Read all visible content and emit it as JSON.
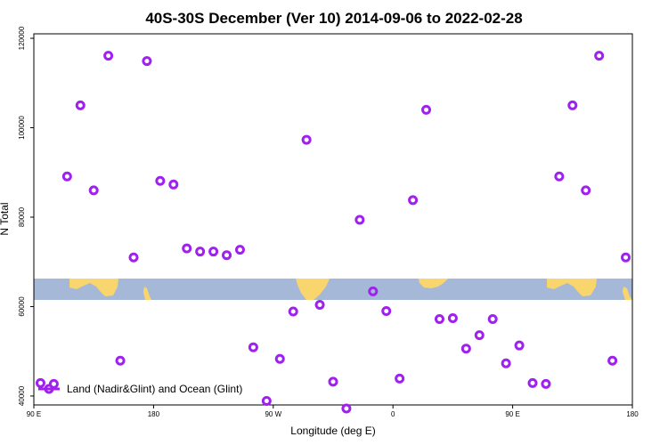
{
  "chart_data": {
    "type": "scatter",
    "title": "40S-30S December (Ver 10)   2014-09-06 to 2022-02-28",
    "xlabel": "Longitude (deg E)",
    "ylabel": "N Total",
    "x_ticks": [
      {
        "label": "90 E",
        "value": 90
      },
      {
        "label": "180",
        "value": 180
      },
      {
        "label": "90 W",
        "value": 270
      },
      {
        "label": "0",
        "value": 360
      },
      {
        "label": "90 E",
        "value": 450
      },
      {
        "label": "180",
        "value": 540
      }
    ],
    "y_ticks": [
      {
        "label": "40000",
        "value": 40000
      },
      {
        "label": "60000",
        "value": 60000
      },
      {
        "label": "80000",
        "value": 80000
      },
      {
        "label": "100000",
        "value": 100000
      },
      {
        "label": "120000",
        "value": 120000
      }
    ],
    "xlim": [
      90,
      540
    ],
    "ylim": [
      38000,
      121000
    ],
    "grid": false,
    "legend_position": "bottom-left",
    "colors": {
      "series": "#a020f0",
      "ocean": "#a5b8d8",
      "land": "#f9d56e"
    },
    "series": [
      {
        "name": "Land (Nadir&Glint) and Ocean (Glint)",
        "x": [
          95,
          105,
          115,
          125,
          135,
          146,
          155,
          165,
          175,
          185,
          195,
          205,
          215,
          225,
          235,
          245,
          255,
          265,
          275,
          285,
          295,
          305,
          315,
          325,
          335,
          345,
          355,
          365,
          375,
          385,
          395,
          405,
          415,
          425,
          435,
          445,
          455,
          465,
          475,
          485,
          495,
          505,
          515,
          525,
          535
        ],
        "y": [
          42900,
          42700,
          89100,
          105000,
          86000,
          116100,
          47900,
          71000,
          114900,
          88100,
          87300,
          73000,
          72300,
          72300,
          71500,
          72700,
          50900,
          38900,
          48300,
          58900,
          97300,
          60400,
          43200,
          37200,
          79400,
          63400,
          59000,
          43900,
          83800,
          104000,
          57200,
          57400,
          50600,
          53600,
          57200,
          47300,
          51300,
          42900,
          42700,
          89100,
          105000,
          86000,
          116100,
          47900,
          71000
        ]
      }
    ]
  }
}
